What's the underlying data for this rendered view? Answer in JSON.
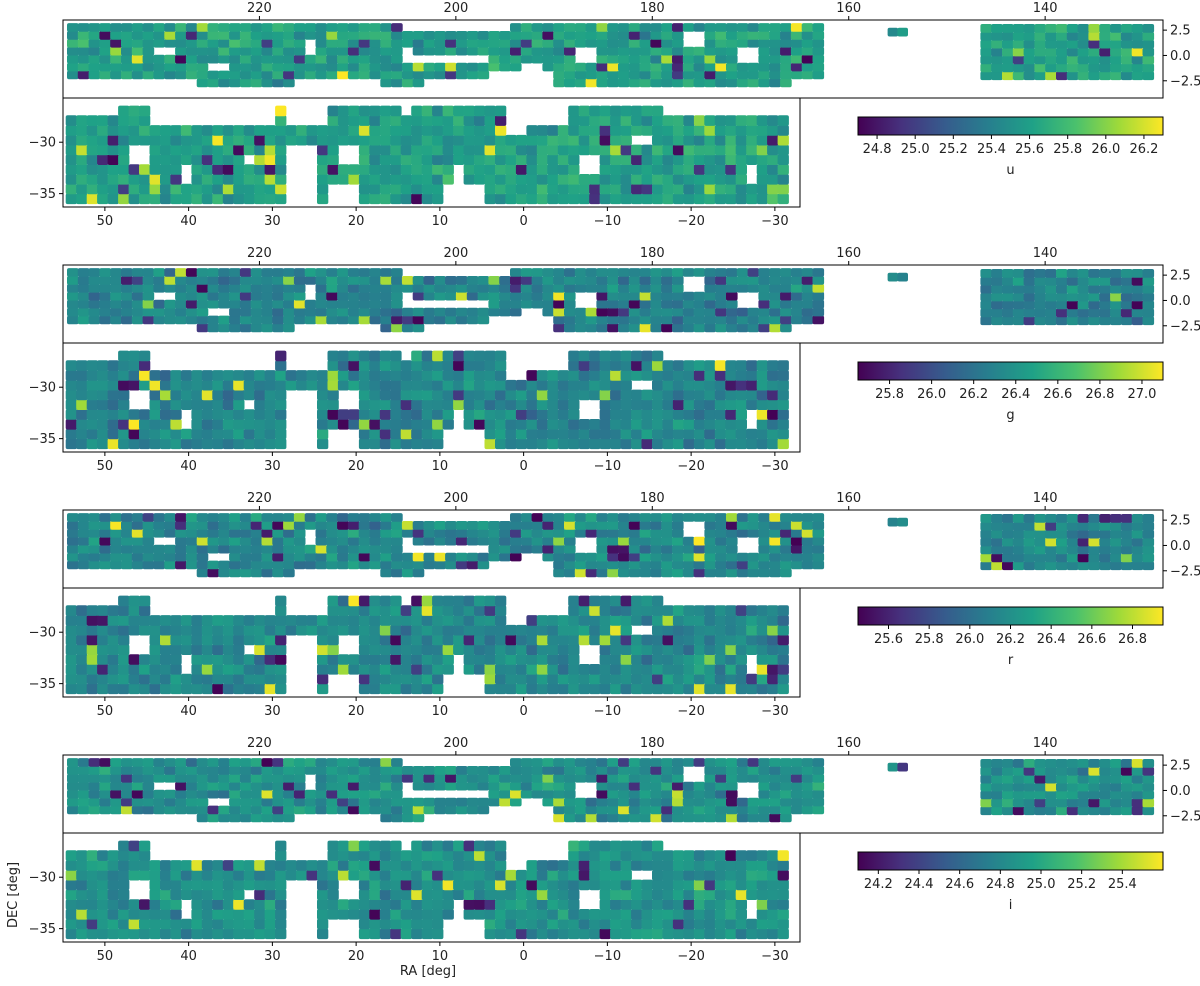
{
  "figure": {
    "xlabel": "RA [deg]",
    "ylabel": "DEC [deg]",
    "colormap": [
      "#440154",
      "#46327e",
      "#365c8d",
      "#277f8e",
      "#1fa187",
      "#4ac16d",
      "#a0da39",
      "#fde725"
    ]
  },
  "chart_data": [
    {
      "type": "heatmap",
      "band": "u",
      "colorbar_label": "u",
      "vmin": 24.7,
      "vmax": 26.3,
      "colorbar_ticks": [
        24.8,
        25.0,
        25.2,
        25.4,
        25.6,
        25.8,
        26.0,
        26.2
      ],
      "colorbar_tick_labels": [
        "24.8",
        "25.0",
        "25.2",
        "25.4",
        "25.6",
        "25.8",
        "26.0",
        "26.2"
      ],
      "typical": 25.6,
      "equatorial_panel": {
        "x_axis": "top",
        "y_axis": "right",
        "xlim": [
          240,
          128
        ],
        "ylim": [
          -4.2,
          3.5
        ],
        "x_ticks": [
          220,
          200,
          180,
          160,
          140
        ],
        "x_tick_labels": [
          "220",
          "200",
          "180",
          "160",
          "140"
        ],
        "y_ticks": [
          2.5,
          0.0,
          -2.5
        ],
        "y_tick_labels": [
          "2.5",
          "0.0",
          "−2.5"
        ],
        "tiles": {
          "main": {
            "ra": [
              239,
              163
            ],
            "dec": [
              -2.2,
              2.8
            ]
          },
          "isolated": {
            "ra": [
              155.5,
              154.5
            ],
            "dec": [
              2.3,
              2.3
            ]
          },
          "east": {
            "ra": [
              146,
              128
            ],
            "dec": [
              -2.0,
              2.8
            ]
          }
        }
      },
      "southern_panel": {
        "x_axis": "bottom",
        "y_axis": "left",
        "xlim": [
          55,
          -33
        ],
        "ylim": [
          -36.3,
          -25.7
        ],
        "x_ticks": [
          50,
          40,
          30,
          20,
          10,
          0,
          -10,
          -20,
          -30
        ],
        "x_tick_labels": [
          "50",
          "40",
          "30",
          "20",
          "10",
          "0",
          "−10",
          "−20",
          "−30"
        ],
        "y_ticks": [
          -30,
          -35
        ],
        "y_tick_labels": [
          "−30",
          "−35"
        ],
        "tiles": {
          "ra": [
            54,
            -31
          ],
          "dec": [
            -35.5,
            -26.5
          ]
        }
      }
    },
    {
      "type": "heatmap",
      "band": "g",
      "colorbar_label": "g",
      "vmin": 25.65,
      "vmax": 27.1,
      "colorbar_ticks": [
        25.8,
        26.0,
        26.2,
        26.4,
        26.6,
        26.8,
        27.0
      ],
      "colorbar_tick_labels": [
        "25.8",
        "26.0",
        "26.2",
        "26.4",
        "26.6",
        "26.8",
        "27.0"
      ],
      "typical": 26.3,
      "equatorial_panel": {
        "x_axis": "top",
        "y_axis": "right",
        "xlim": [
          240,
          128
        ],
        "ylim": [
          -4.2,
          3.5
        ],
        "x_ticks": [
          220,
          200,
          180,
          160,
          140
        ],
        "x_tick_labels": [
          "220",
          "200",
          "180",
          "160",
          "140"
        ],
        "y_ticks": [
          2.5,
          0.0,
          -2.5
        ],
        "y_tick_labels": [
          "2.5",
          "0.0",
          "−2.5"
        ],
        "tiles": {
          "main": {
            "ra": [
              239,
              163
            ],
            "dec": [
              -2.2,
              2.8
            ]
          },
          "isolated": {
            "ra": [
              155.5,
              154.5
            ],
            "dec": [
              2.3,
              2.3
            ]
          },
          "east": {
            "ra": [
              146,
              128
            ],
            "dec": [
              -2.0,
              2.8
            ]
          }
        }
      },
      "southern_panel": {
        "x_axis": "bottom",
        "y_axis": "left",
        "xlim": [
          55,
          -33
        ],
        "ylim": [
          -36.3,
          -25.7
        ],
        "x_ticks": [
          50,
          40,
          30,
          20,
          10,
          0,
          -10,
          -20,
          -30
        ],
        "x_tick_labels": [
          "50",
          "40",
          "30",
          "20",
          "10",
          "0",
          "−10",
          "−20",
          "−30"
        ],
        "y_ticks": [
          -30,
          -35
        ],
        "y_tick_labels": [
          "−30",
          "−35"
        ],
        "tiles": {
          "ra": [
            54,
            -31
          ],
          "dec": [
            -35.5,
            -26.5
          ]
        }
      }
    },
    {
      "type": "heatmap",
      "band": "r",
      "colorbar_label": "r",
      "vmin": 25.45,
      "vmax": 26.95,
      "colorbar_ticks": [
        25.6,
        25.8,
        26.0,
        26.2,
        26.4,
        26.6,
        26.8
      ],
      "colorbar_tick_labels": [
        "25.6",
        "25.8",
        "26.0",
        "26.2",
        "26.4",
        "26.6",
        "26.8"
      ],
      "typical": 26.15,
      "equatorial_panel": {
        "x_axis": "top",
        "y_axis": "right",
        "xlim": [
          240,
          128
        ],
        "ylim": [
          -4.2,
          3.5
        ],
        "x_ticks": [
          220,
          200,
          180,
          160,
          140
        ],
        "x_tick_labels": [
          "220",
          "200",
          "180",
          "160",
          "140"
        ],
        "y_ticks": [
          2.5,
          0.0,
          -2.5
        ],
        "y_tick_labels": [
          "2.5",
          "0.0",
          "−2.5"
        ],
        "tiles": {
          "main": {
            "ra": [
              239,
              163
            ],
            "dec": [
              -2.2,
              2.8
            ]
          },
          "isolated": {
            "ra": [
              155.5,
              154.5
            ],
            "dec": [
              2.3,
              2.3
            ]
          },
          "east": {
            "ra": [
              146,
              128
            ],
            "dec": [
              -2.0,
              2.8
            ]
          }
        }
      },
      "southern_panel": {
        "x_axis": "bottom",
        "y_axis": "left",
        "xlim": [
          55,
          -33
        ],
        "ylim": [
          -36.3,
          -25.7
        ],
        "x_ticks": [
          50,
          40,
          30,
          20,
          10,
          0,
          -10,
          -20,
          -30
        ],
        "x_tick_labels": [
          "50",
          "40",
          "30",
          "20",
          "10",
          "0",
          "−10",
          "−20",
          "−30"
        ],
        "y_ticks": [
          -30,
          -35
        ],
        "y_tick_labels": [
          "−30",
          "−35"
        ],
        "tiles": {
          "ra": [
            54,
            -31
          ],
          "dec": [
            -35.5,
            -26.5
          ]
        }
      }
    },
    {
      "type": "heatmap",
      "band": "i",
      "colorbar_label": "i",
      "vmin": 24.1,
      "vmax": 25.6,
      "colorbar_ticks": [
        24.2,
        24.4,
        24.6,
        24.8,
        25.0,
        25.2,
        25.4
      ],
      "colorbar_tick_labels": [
        "24.2",
        "24.4",
        "24.6",
        "24.8",
        "25.0",
        "25.2",
        "25.4"
      ],
      "typical": 24.85,
      "equatorial_panel": {
        "x_axis": "top",
        "y_axis": "right",
        "xlim": [
          240,
          128
        ],
        "ylim": [
          -4.2,
          3.5
        ],
        "x_ticks": [
          220,
          200,
          180,
          160,
          140
        ],
        "x_tick_labels": [
          "220",
          "200",
          "180",
          "160",
          "140"
        ],
        "y_ticks": [
          2.5,
          0.0,
          -2.5
        ],
        "y_tick_labels": [
          "2.5",
          "0.0",
          "−2.5"
        ],
        "tiles": {
          "main": {
            "ra": [
              239,
              163
            ],
            "dec": [
              -2.2,
              2.8
            ]
          },
          "isolated": {
            "ra": [
              155.5,
              154.5
            ],
            "dec": [
              2.3,
              2.3
            ]
          },
          "east": {
            "ra": [
              146,
              128
            ],
            "dec": [
              -2.0,
              2.8
            ]
          }
        }
      },
      "southern_panel": {
        "x_axis": "bottom",
        "y_axis": "left",
        "xlim": [
          55,
          -33
        ],
        "ylim": [
          -36.3,
          -25.7
        ],
        "x_ticks": [
          50,
          40,
          30,
          20,
          10,
          0,
          -10,
          -20,
          -30
        ],
        "x_tick_labels": [
          "50",
          "40",
          "30",
          "20",
          "10",
          "0",
          "−10",
          "−20",
          "−30"
        ],
        "y_ticks": [
          -30,
          -35
        ],
        "y_tick_labels": [
          "−30",
          "−35"
        ],
        "tiles": {
          "ra": [
            54,
            -31
          ],
          "dec": [
            -35.5,
            -26.5
          ]
        }
      }
    }
  ]
}
